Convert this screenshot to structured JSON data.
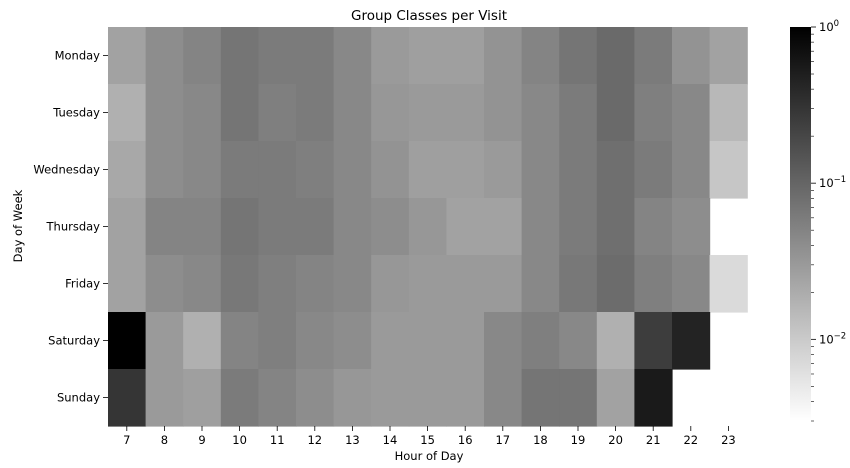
{
  "chart_data": {
    "type": "heatmap",
    "title": "Group Classes per Visit",
    "xlabel": "Hour of Day",
    "ylabel": "Day of Week",
    "x_categories": [
      "7",
      "8",
      "9",
      "10",
      "11",
      "12",
      "13",
      "14",
      "15",
      "16",
      "17",
      "18",
      "19",
      "20",
      "21",
      "22",
      "23"
    ],
    "y_categories": [
      "Monday",
      "Tuesday",
      "Wednesday",
      "Thursday",
      "Friday",
      "Saturday",
      "Sunday"
    ],
    "values": [
      [
        0.025,
        0.04,
        0.05,
        0.07,
        0.06,
        0.06,
        0.045,
        0.03,
        0.027,
        0.027,
        0.035,
        0.05,
        0.07,
        0.09,
        0.06,
        0.035,
        0.025
      ],
      [
        0.018,
        0.04,
        0.045,
        0.07,
        0.055,
        0.06,
        0.045,
        0.032,
        0.03,
        0.03,
        0.035,
        0.045,
        0.06,
        0.09,
        0.055,
        0.045,
        0.015
      ],
      [
        0.022,
        0.04,
        0.045,
        0.06,
        0.06,
        0.055,
        0.045,
        0.035,
        0.027,
        0.027,
        0.03,
        0.045,
        0.06,
        0.08,
        0.06,
        0.045,
        0.011
      ],
      [
        0.025,
        0.05,
        0.05,
        0.07,
        0.06,
        0.06,
        0.045,
        0.04,
        0.032,
        0.025,
        0.025,
        0.045,
        0.06,
        0.08,
        0.05,
        0.04,
        null
      ],
      [
        0.025,
        0.04,
        0.045,
        0.065,
        0.055,
        0.05,
        0.045,
        0.032,
        0.03,
        0.03,
        0.03,
        0.045,
        0.065,
        0.085,
        0.055,
        0.045,
        0.007
      ],
      [
        1.0,
        0.03,
        0.018,
        0.05,
        0.055,
        0.045,
        0.04,
        0.03,
        0.03,
        0.03,
        0.045,
        0.055,
        0.045,
        0.018,
        0.25,
        0.45,
        null
      ],
      [
        0.3,
        0.03,
        0.027,
        0.06,
        0.05,
        0.04,
        0.032,
        0.03,
        0.03,
        0.03,
        0.045,
        0.07,
        0.07,
        0.025,
        0.55,
        null,
        null
      ]
    ],
    "color_scale": "log",
    "colorbar": {
      "min": 0.003,
      "max": 1.0,
      "ticks": [
        "10^0",
        "10^-1",
        "10^-2"
      ]
    },
    "colormap": "Greys",
    "grid": false
  }
}
